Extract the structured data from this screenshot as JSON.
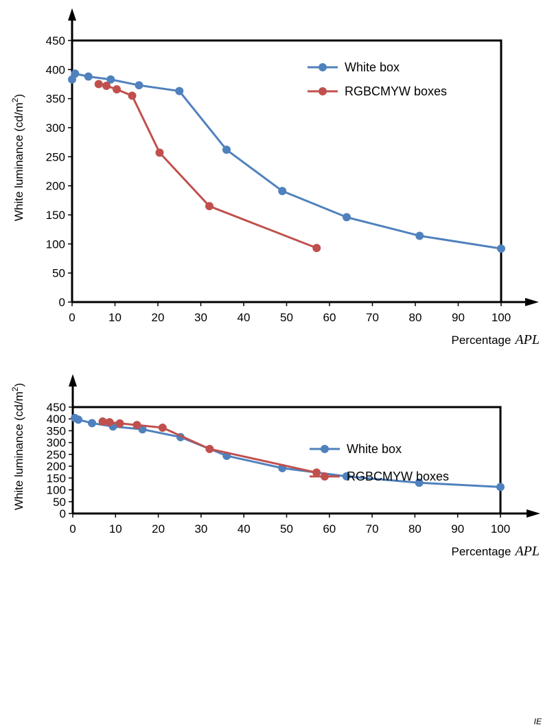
{
  "chart_data": [
    {
      "type": "line",
      "title": "",
      "xlabel": "Percentage",
      "xlabel_var": "APL",
      "ylabel": "White luminance  (cd/m",
      "ylabel_sup": "2",
      "ylabel_close": ")",
      "xlim": [
        0,
        100
      ],
      "ylim": [
        0,
        450
      ],
      "xticks": [
        0,
        10,
        20,
        30,
        40,
        50,
        60,
        70,
        80,
        90,
        100
      ],
      "yticks": [
        0,
        50,
        100,
        150,
        200,
        250,
        300,
        350,
        400,
        450
      ],
      "grid": false,
      "legend_position": "top-right",
      "series": [
        {
          "name": "White box",
          "color": "#4F81BD",
          "x": [
            0,
            0.7,
            3.8,
            9,
            15.6,
            25,
            36,
            49,
            64,
            81,
            100
          ],
          "y": [
            383,
            393,
            388,
            383,
            373,
            363,
            262,
            191,
            146,
            114,
            92
          ]
        },
        {
          "name": "RGBCMYW boxes",
          "color": "#C0504D",
          "x": [
            6.2,
            8,
            10.4,
            14,
            20.4,
            32,
            57
          ],
          "y": [
            375,
            372,
            366,
            355,
            257,
            165,
            93
          ]
        }
      ]
    },
    {
      "type": "line",
      "title": "",
      "xlabel": "Percentage",
      "xlabel_var": "APL",
      "ylabel": "White luminance  (cd/m",
      "ylabel_sup": "2",
      "ylabel_close": ")",
      "xlim": [
        0,
        100
      ],
      "ylim": [
        0,
        450
      ],
      "xticks": [
        0,
        10,
        20,
        30,
        40,
        50,
        60,
        70,
        80,
        90,
        100
      ],
      "yticks": [
        0,
        50,
        100,
        150,
        200,
        250,
        300,
        350,
        400,
        450
      ],
      "grid": false,
      "legend_position": "right",
      "series": [
        {
          "name": "White box",
          "color": "#4F81BD",
          "x": [
            0.5,
            1.3,
            4.5,
            9.4,
            16.3,
            25.2,
            36,
            49,
            64,
            81,
            100
          ],
          "y": [
            404,
            397,
            382,
            368,
            356,
            323,
            244,
            192,
            157,
            130,
            112
          ]
        },
        {
          "name": "RGBCMYW boxes",
          "color": "#C0504D",
          "x": [
            7,
            8.6,
            11,
            15,
            21,
            32,
            57
          ],
          "y": [
            389,
            386,
            381,
            374,
            363,
            273,
            173
          ]
        }
      ]
    }
  ],
  "footer": {
    "tag": "IE"
  }
}
